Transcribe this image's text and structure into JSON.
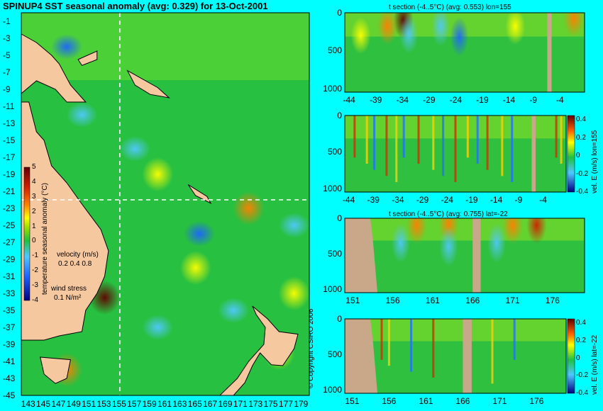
{
  "chart_data": [
    {
      "type": "heatmap",
      "title": "SPINUP4 SST seasonal anomaly (avg: 0.329) for 13-Oct-2001",
      "x_ticks": [
        "143",
        "145",
        "147",
        "149",
        "151",
        "153",
        "155",
        "157",
        "159",
        "161",
        "163",
        "165",
        "167",
        "169",
        "171",
        "173",
        "175",
        "177",
        "179"
      ],
      "y_ticks": [
        "-1",
        "-3",
        "-5",
        "-7",
        "-9",
        "-11",
        "-13",
        "-15",
        "-17",
        "-19",
        "-21",
        "-23",
        "-25",
        "-27",
        "-29",
        "-31",
        "-33",
        "-35",
        "-37",
        "-39",
        "-41",
        "-43",
        "-45"
      ],
      "xlim": [
        142,
        180
      ],
      "ylim": [
        -45,
        0
      ],
      "crosshair": {
        "lon": 155,
        "lat": -22
      },
      "colorbar": {
        "label": "temperature seasonal anomaly (°C)",
        "range": [
          -4,
          5
        ],
        "ticks": [
          "5",
          "4",
          "3",
          "2",
          "1",
          "0",
          "-1",
          "-2",
          "-3",
          "-4"
        ]
      },
      "legend_velocity": {
        "label": "velocity (m/s)",
        "scale": "0.2 0.4 0.8"
      },
      "legend_wind": {
        "label": "wind stress",
        "scale": "0.1 N/m²"
      },
      "cool_patches": [
        {
          "lon": 148,
          "lat": -4,
          "amp": -2.5
        },
        {
          "lon": 165.5,
          "lat": -26,
          "amp": -2.5
        },
        {
          "lon": 150,
          "lat": -12,
          "amp": -1.5
        },
        {
          "lon": 157,
          "lat": -16,
          "amp": -1.5
        },
        {
          "lon": 170,
          "lat": -35,
          "amp": -1.5
        },
        {
          "lon": 160,
          "lat": -37,
          "amp": -1.5
        },
        {
          "lon": 178,
          "lat": -25,
          "amp": -1.5
        }
      ],
      "warm_patches": [
        {
          "lon": 153,
          "lat": -33.5,
          "amp": 4
        },
        {
          "lon": 148,
          "lat": -42,
          "amp": 2.5
        },
        {
          "lon": 172,
          "lat": -23,
          "amp": 2
        },
        {
          "lon": 160,
          "lat": -19,
          "amp": 1.5
        },
        {
          "lon": 165,
          "lat": -30,
          "amp": 1.5
        },
        {
          "lon": 176,
          "lat": -40,
          "amp": 1.5
        },
        {
          "lon": 178,
          "lat": -33,
          "amp": 1.5
        }
      ]
    },
    {
      "type": "heatmap",
      "title": "t section (-4..5°C) (avg: 0.553) lon=155",
      "axis": "lat",
      "x_ticks": [
        "-44",
        "-39",
        "-34",
        "-29",
        "-24",
        "-19",
        "-14",
        "-9",
        "-4"
      ],
      "xlim": [
        -45,
        0
      ],
      "y_ticks": [
        "0",
        "500",
        "1000"
      ],
      "ylim": [
        0,
        1050
      ],
      "land_range": [
        -7,
        -6.2
      ],
      "warm_patches": [
        {
          "x": -34,
          "depth": 100,
          "amp": 4
        },
        {
          "x": -37,
          "depth": 180,
          "amp": 2.5
        },
        {
          "x": -42,
          "depth": 300,
          "amp": 1.5
        },
        {
          "x": -13,
          "depth": 180,
          "amp": 1.5
        },
        {
          "x": -2,
          "depth": 80,
          "amp": 2.5
        }
      ],
      "cool_patches": [
        {
          "x": -23.5,
          "depth": 320,
          "amp": -3
        },
        {
          "x": -27,
          "depth": 180,
          "amp": -2
        },
        {
          "x": -33,
          "depth": 280,
          "amp": -1.5
        }
      ]
    },
    {
      "type": "heatmap",
      "title": "",
      "axis": "lat",
      "x_ticks": [
        "-44",
        "-39",
        "-34",
        "-29",
        "-24",
        "-19",
        "-14",
        "-9",
        "-4"
      ],
      "xlim": [
        -45,
        0
      ],
      "y_ticks": [
        "0",
        "500",
        "1000"
      ],
      "ylim": [
        0,
        1050
      ],
      "land_range": [
        -7,
        -6.2
      ],
      "colorbar": {
        "label": "vel. E (m/s) lon=155",
        "ticks": [
          "0.4",
          "0.2",
          "0",
          "-0.2",
          "-0.4"
        ],
        "range": [
          -0.4,
          0.45
        ]
      },
      "stripes": [
        -43,
        -40.5,
        -39,
        -36.5,
        -34.5,
        -33,
        -30,
        -27,
        -25,
        -22.5,
        -20,
        -18,
        -16,
        -13,
        -11,
        -2,
        -1
      ]
    },
    {
      "type": "heatmap",
      "title": "t section (-4..5°C) (avg: 0.755) lat=-22",
      "axis": "lon",
      "x_ticks": [
        "151",
        "156",
        "161",
        "166",
        "171",
        "176"
      ],
      "xlim": [
        150,
        180
      ],
      "y_ticks": [
        "0",
        "500",
        "1000"
      ],
      "ylim": [
        0,
        1050
      ],
      "land_range": [
        166,
        167
      ],
      "warm_patches": [
        {
          "x": 159,
          "depth": 100,
          "amp": 2
        },
        {
          "x": 163,
          "depth": 80,
          "amp": 2
        },
        {
          "x": 174,
          "depth": 100,
          "amp": 3
        },
        {
          "x": 171,
          "depth": 100,
          "amp": 2
        }
      ],
      "cool_patches": [
        {
          "x": 157,
          "depth": 350,
          "amp": -2
        },
        {
          "x": 163,
          "depth": 400,
          "amp": -1.5
        },
        {
          "x": 169,
          "depth": 350,
          "amp": -1.5
        }
      ]
    },
    {
      "type": "heatmap",
      "title": "",
      "axis": "lon",
      "x_ticks": [
        "151",
        "156",
        "161",
        "166",
        "171",
        "176"
      ],
      "xlim": [
        150,
        180
      ],
      "y_ticks": [
        "0",
        "500",
        "1000"
      ],
      "ylim": [
        0,
        1050
      ],
      "land_range": [
        166,
        167.2
      ],
      "colorbar": {
        "label": "vel. E (m/s) lat=-22",
        "ticks": [
          "0.4",
          "0.2",
          "0",
          "-0.2",
          "-0.4"
        ],
        "range": [
          -0.4,
          0.45
        ]
      },
      "stripes": [
        155,
        156,
        159,
        162,
        170,
        173
      ]
    }
  ],
  "copyright": "© Copyright CSIRO 2006"
}
